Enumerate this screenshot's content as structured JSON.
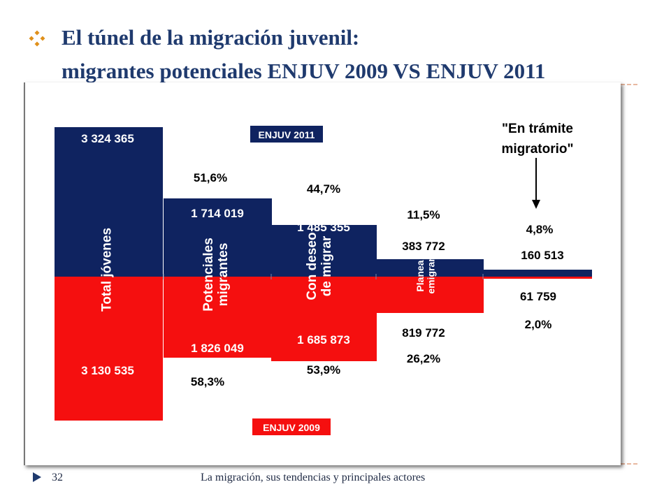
{
  "slide": {
    "title_line1": "El túnel de la migración  juvenil:",
    "title_line2": "migrantes potenciales ENJUV 2009 VS ENJUV 2011",
    "page_number": "32",
    "footer": "La migración, sus tendencias y principales actores",
    "bullet_icon": "diamond-bullet-icon",
    "footer_icon": "triangle-arrow-icon"
  },
  "colors": {
    "title": "#1f3a6e",
    "enjuv_2011": "#0f2360",
    "enjuv_2009": "#f50f0f",
    "bullet": "#e0901a"
  },
  "chart_data": {
    "type": "bar",
    "layout": "mirrored stacked (2011 above, 2009 below)",
    "categories": [
      "Total jóvenes",
      "Potenciales migrantes",
      "Con deseo de migrar",
      "Planea emigrar",
      ""
    ],
    "series": [
      {
        "name": "ENJUV 2011",
        "values": [
          3324365,
          1714019,
          1485355,
          383772,
          160513
        ],
        "value_labels": [
          "3 324 365",
          "1 714 019",
          "1 485 355",
          "383 772",
          "160 513"
        ],
        "percent_labels": [
          "",
          "51,6%",
          "44,7%",
          "11,5%",
          "4,8%"
        ]
      },
      {
        "name": "ENJUV 2009",
        "values": [
          3130535,
          1826049,
          1685873,
          819772,
          61759
        ],
        "value_labels": [
          "3 130 535",
          "1 826 049",
          "1 685 873",
          "819 772",
          "61 759"
        ],
        "percent_labels": [
          "",
          "58,3%",
          "53,9%",
          "26,2%",
          "2,0%"
        ]
      }
    ],
    "category_labels": [
      "Total jóvenes",
      "Potenciales\nmigrantes",
      "Con deseo\nde migrar",
      "Planea\nemigrar"
    ],
    "annotation": "\"En trámite\nmigratorio\"",
    "legend_labels": [
      "ENJUV 2011",
      "ENJUV 2009"
    ],
    "legend_placement": "2011 top-center, 2009 bottom-center",
    "grid": false
  }
}
